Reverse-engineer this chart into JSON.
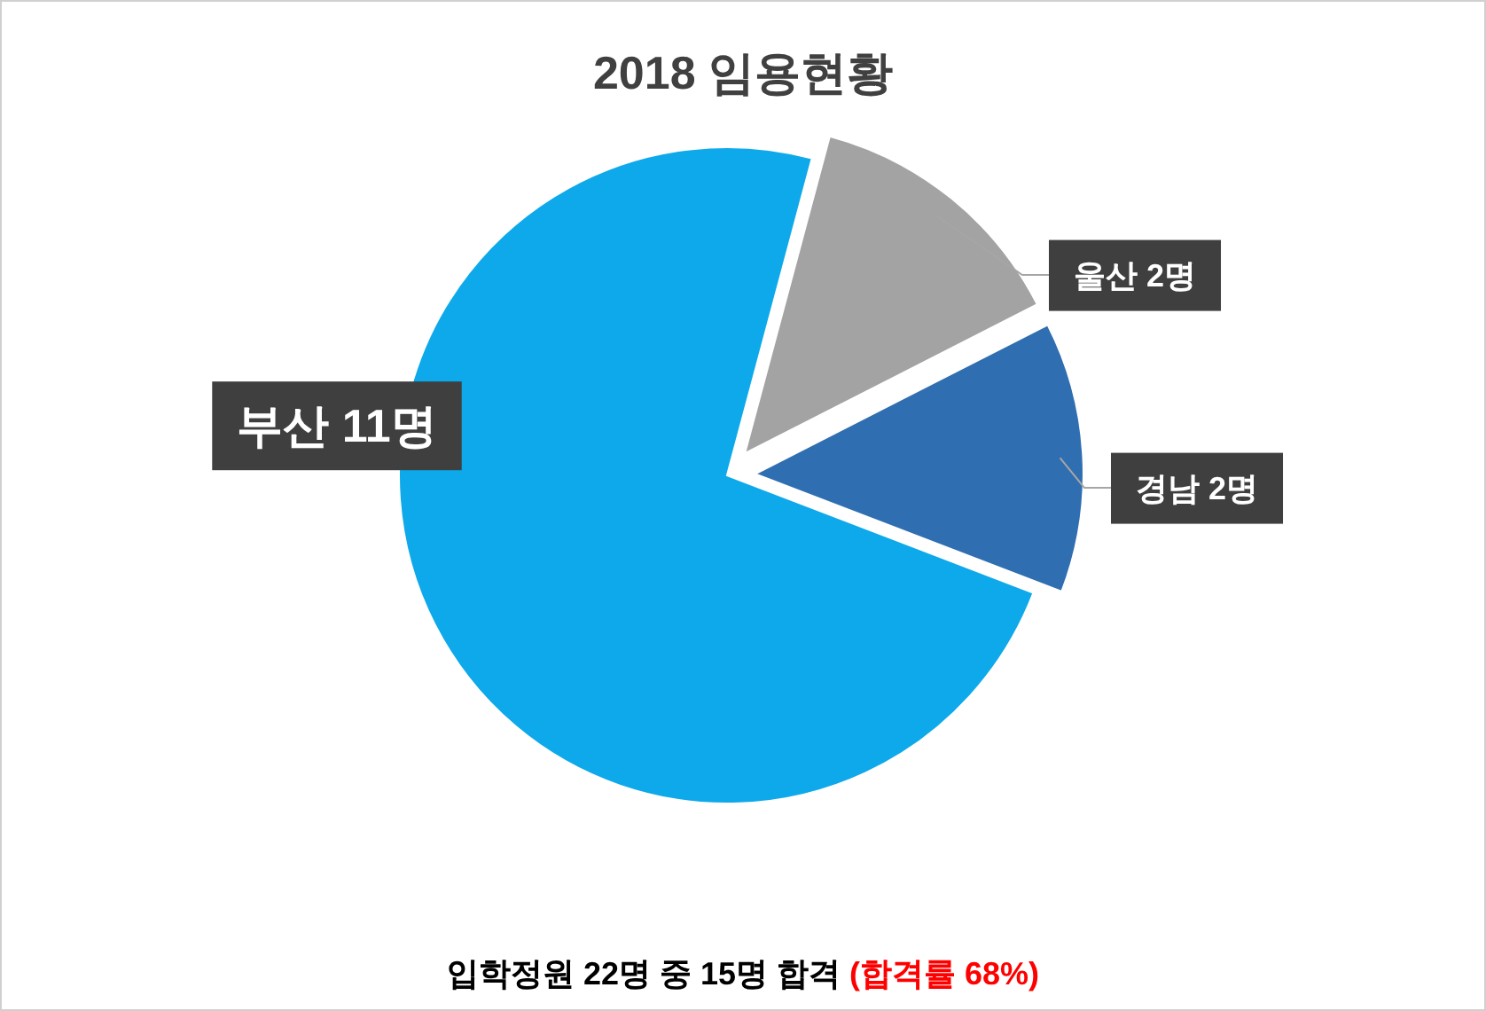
{
  "chart_data": {
    "type": "pie",
    "title": "2018 임용현황",
    "categories": [
      "부산",
      "울산",
      "경남"
    ],
    "values": [
      11,
      2,
      2
    ],
    "value_labels": [
      "11명",
      "2명",
      "2명"
    ],
    "colors": [
      "#0ea9ea",
      "#a3a3a3",
      "#2f6eb0"
    ],
    "annotations": [
      "입학정원 22명 중 15명 합격",
      "(합격률 68%)"
    ]
  }
}
